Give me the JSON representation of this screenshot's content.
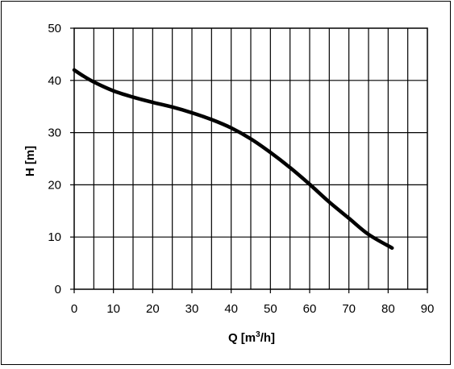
{
  "chart_data": {
    "type": "line",
    "xlabel": "Q [m",
    "xlabel_sup": "3",
    "xlabel_suffix": "/h]",
    "ylabel": "H [m]",
    "xlim": [
      0,
      90
    ],
    "ylim": [
      0,
      50
    ],
    "xticks": [
      0,
      10,
      20,
      30,
      40,
      50,
      60,
      70,
      80,
      90
    ],
    "yticks": [
      0,
      10,
      20,
      30,
      40,
      50
    ],
    "x_grid_step": 5,
    "y_grid_step": 10,
    "grid": true,
    "legend": "none",
    "line_color": "#000000",
    "series": [
      {
        "x": [
          0,
          2,
          5,
          10,
          15,
          20,
          25,
          30,
          35,
          40,
          45,
          50,
          55,
          60,
          65,
          70,
          75,
          81
        ],
        "y": [
          42,
          41,
          39.7,
          38,
          36.8,
          35.8,
          34.9,
          33.8,
          32.5,
          30.9,
          28.8,
          26.2,
          23.3,
          20.1,
          16.7,
          13.6,
          10.5,
          7.9
        ]
      }
    ]
  }
}
